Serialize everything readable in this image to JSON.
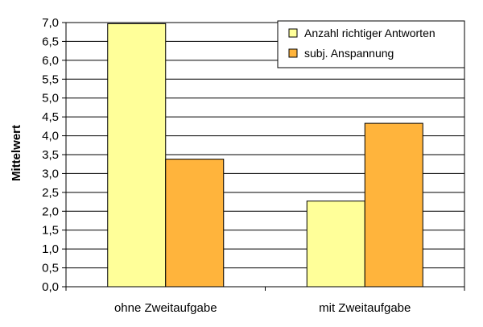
{
  "chart_data": {
    "type": "bar",
    "title": "",
    "xlabel": "",
    "ylabel": "Mittelwert",
    "ylim": [
      0,
      7
    ],
    "y_tick_step": 0.5,
    "y_tick_labels": [
      "0,0",
      "0,5",
      "1,0",
      "1,5",
      "2,0",
      "2,5",
      "3,0",
      "3,5",
      "4,0",
      "4,5",
      "5,0",
      "5,5",
      "6,0",
      "6,5",
      "7,0"
    ],
    "grid": true,
    "legend_position": "top-right",
    "categories": [
      "ohne Zweitaufgabe",
      "mit Zweitaufgabe"
    ],
    "series": [
      {
        "name": "Anzahl richtiger Antworten",
        "color": "#FFFF99",
        "values": [
          6.97,
          2.27
        ]
      },
      {
        "name": "subj. Anspannung",
        "color": "#FFB43C",
        "values": [
          3.38,
          4.33
        ]
      }
    ]
  }
}
